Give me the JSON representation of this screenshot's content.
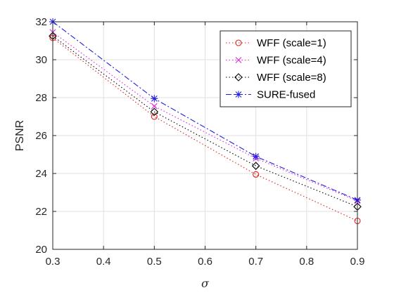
{
  "chart_data": {
    "type": "line",
    "title": "",
    "xlabel": "σ",
    "ylabel": "PSNR",
    "xlim": [
      0.3,
      0.9
    ],
    "ylim": [
      20,
      32
    ],
    "xticks": [
      "0.3",
      "0.4",
      "0.5",
      "0.6",
      "0.7",
      "0.8",
      "0.9"
    ],
    "yticks": [
      "20",
      "22",
      "24",
      "26",
      "28",
      "30",
      "32"
    ],
    "grid": true,
    "legend_position": "top-right",
    "x": [
      0.3,
      0.5,
      0.7,
      0.9
    ],
    "series": [
      {
        "name": "WFF (scale=1)",
        "values": [
          31.15,
          27.0,
          23.95,
          21.5
        ],
        "color": "#e0201b",
        "line": "dotted",
        "marker": "circle"
      },
      {
        "name": "WFF (scale=4)",
        "values": [
          31.45,
          27.55,
          24.8,
          22.55
        ],
        "color": "#e020e0",
        "line": "dotted",
        "marker": "x"
      },
      {
        "name": "WFF (scale=8)",
        "values": [
          31.25,
          27.25,
          24.4,
          22.25
        ],
        "color": "#000000",
        "line": "dotted",
        "marker": "diamond"
      },
      {
        "name": "SURE-fused",
        "values": [
          32.0,
          27.95,
          24.9,
          22.6
        ],
        "color": "#1f1fe0",
        "line": "dashdot",
        "marker": "asterisk"
      }
    ]
  }
}
